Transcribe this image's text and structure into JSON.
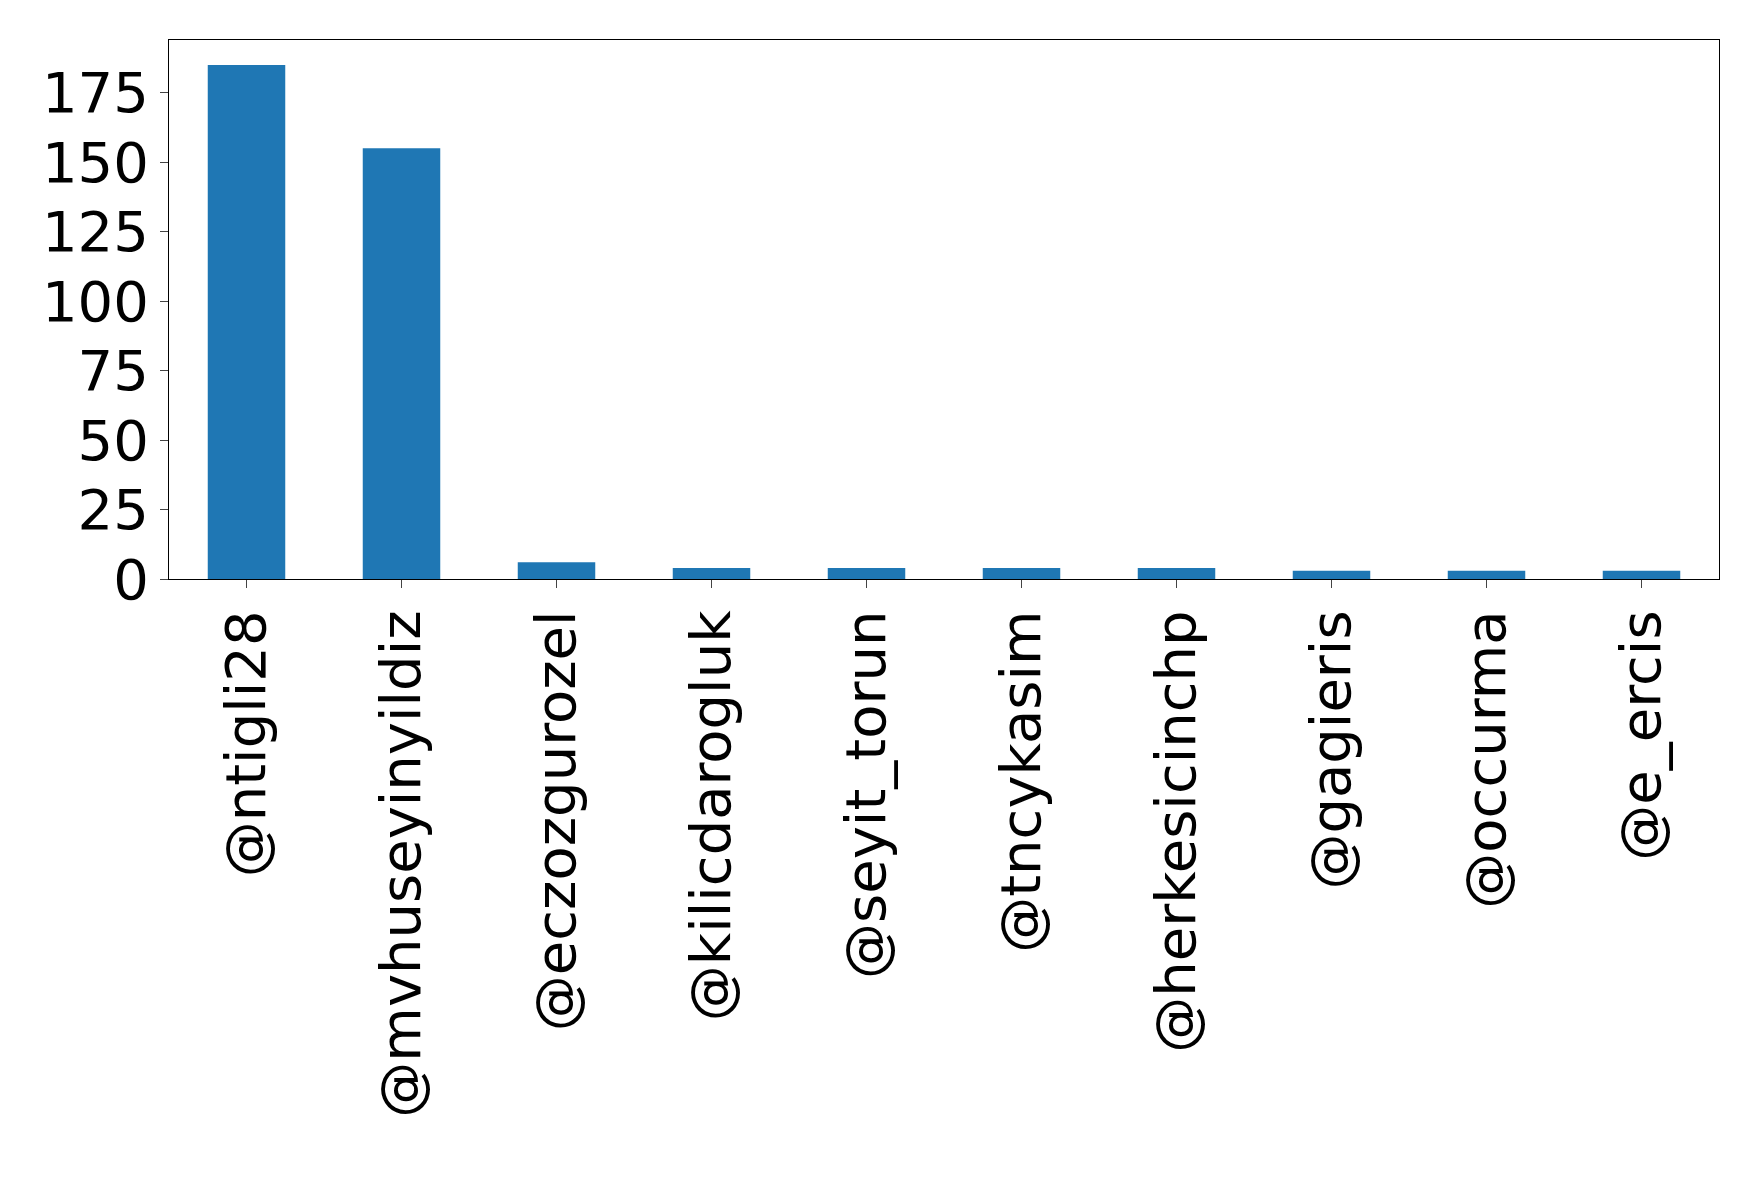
{
  "chart_data": {
    "type": "bar",
    "categories": [
      "@ntigli28",
      "@mvhuseyinyildiz",
      "@eczozgurozel",
      "@kilicdarogluk",
      "@seyit_torun",
      "@tncykasim",
      "@herkesicinchp",
      "@gagieris",
      "@occurma",
      "@e_ercis"
    ],
    "values": [
      185,
      155,
      6,
      4,
      4,
      4,
      4,
      3,
      3,
      3
    ],
    "color": "#1f77b4",
    "ylim": [
      0,
      194
    ],
    "yticks": [
      0,
      25,
      50,
      75,
      100,
      125,
      150,
      175
    ]
  }
}
